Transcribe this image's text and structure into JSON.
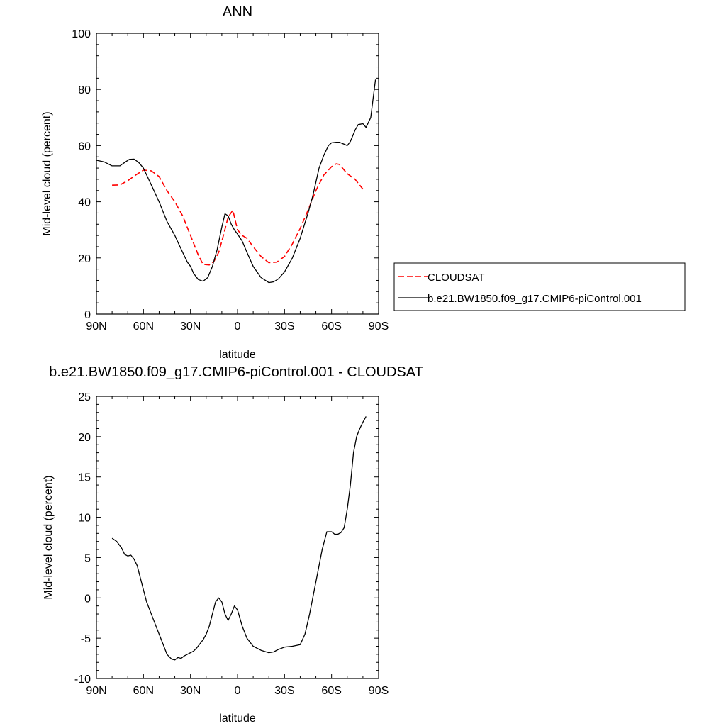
{
  "chart_data": [
    {
      "type": "line",
      "title": "ANN",
      "xlabel": "latitude",
      "ylabel": "Mid-level cloud (percent)",
      "xlim": [
        -90,
        90
      ],
      "ylim": [
        0,
        100
      ],
      "xticks": [
        -90,
        -60,
        -30,
        0,
        30,
        60,
        90
      ],
      "xtick_labels": [
        "90N",
        "60N",
        "30N",
        "0",
        "30S",
        "60S",
        "90S"
      ],
      "yticks": [
        0,
        20,
        40,
        60,
        80,
        100
      ],
      "ytick_labels": [
        "0",
        "20",
        "40",
        "60",
        "80",
        "100"
      ],
      "legend_position": "right",
      "series": [
        {
          "name": "CLOUDSAT",
          "color": "#ff0000",
          "dash": "dashed",
          "x": [
            -80,
            -75,
            -70,
            -65,
            -60,
            -55,
            -50,
            -45,
            -40,
            -35,
            -30,
            -25,
            -22,
            -18,
            -15,
            -12,
            -9,
            -6,
            -3,
            0,
            3,
            6,
            10,
            15,
            20,
            25,
            30,
            35,
            40,
            45,
            50,
            55,
            60,
            63,
            65,
            70,
            75,
            80
          ],
          "y": [
            45.9,
            46.0,
            47.5,
            49.5,
            51.3,
            51.0,
            49.0,
            44.0,
            40.0,
            35.0,
            28.0,
            21.0,
            17.7,
            17.5,
            18.8,
            22.0,
            28.0,
            34.5,
            37.0,
            30.0,
            28.0,
            27.0,
            24.0,
            20.5,
            18.3,
            18.5,
            20.5,
            25.0,
            30.5,
            37.0,
            44.0,
            49.5,
            52.5,
            53.5,
            53.3,
            50.0,
            48.0,
            44.5
          ]
        },
        {
          "name": "b.e21.BW1850.f09_g17.CMIP6-piControl.001",
          "color": "#000000",
          "dash": "solid",
          "x": [
            -90,
            -85,
            -80,
            -75,
            -72,
            -69,
            -66,
            -63,
            -60,
            -55,
            -50,
            -45,
            -40,
            -35,
            -32,
            -30,
            -28,
            -25,
            -22,
            -19,
            -16,
            -13,
            -10,
            -8,
            -6,
            -4,
            -2,
            0,
            3,
            6,
            10,
            15,
            20,
            23,
            26,
            30,
            35,
            40,
            45,
            48,
            50,
            52,
            55,
            58,
            60,
            63,
            65,
            68,
            70,
            72,
            75,
            77,
            80,
            82,
            85,
            88
          ],
          "y": [
            54.8,
            54.2,
            52.8,
            52.8,
            54.0,
            55.1,
            55.2,
            54.0,
            52.0,
            46.0,
            40.0,
            33.0,
            28.0,
            22.0,
            18.5,
            17.0,
            14.5,
            12.3,
            11.7,
            13.0,
            17.0,
            23.0,
            31.0,
            35.7,
            35.0,
            32.0,
            30.0,
            28.5,
            26.0,
            22.0,
            17.0,
            13.0,
            11.2,
            11.5,
            12.5,
            15.0,
            20.0,
            27.0,
            36.0,
            42.0,
            47.0,
            52.0,
            56.5,
            60.0,
            61.0,
            61.2,
            61.2,
            60.5,
            60.0,
            61.5,
            65.5,
            67.5,
            67.8,
            66.5,
            70.0,
            83.5
          ]
        }
      ]
    },
    {
      "type": "line",
      "title": "b.e21.BW1850.f09_g17.CMIP6-piControl.001 - CLOUDSAT",
      "xlabel": "latitude",
      "ylabel": "Mid-level cloud (percent)",
      "xlim": [
        -90,
        90
      ],
      "ylim": [
        -10,
        25
      ],
      "xticks": [
        -90,
        -60,
        -30,
        0,
        30,
        60,
        90
      ],
      "xtick_labels": [
        "90N",
        "60N",
        "30N",
        "0",
        "30S",
        "60S",
        "90S"
      ],
      "yticks": [
        -10,
        -5,
        0,
        5,
        10,
        15,
        20,
        25
      ],
      "ytick_labels": [
        "-10",
        "-5",
        "0",
        "5",
        "10",
        "15",
        "20",
        "25"
      ],
      "series": [
        {
          "color": "#000000",
          "dash": "solid",
          "x": [
            -80,
            -77,
            -74,
            -72,
            -70,
            -68,
            -66,
            -64,
            -62,
            -60,
            -58,
            -56,
            -54,
            -51,
            -48,
            -45,
            -42,
            -40,
            -38,
            -36,
            -34,
            -32,
            -30,
            -28,
            -26,
            -24,
            -22,
            -20,
            -18,
            -16,
            -14,
            -12,
            -10,
            -8,
            -6,
            -4,
            -2,
            0,
            3,
            6,
            10,
            15,
            20,
            23,
            26,
            30,
            35,
            40,
            43,
            46,
            50,
            54,
            57,
            60,
            62,
            64,
            66,
            68,
            70,
            72,
            74,
            76,
            78,
            80,
            82
          ],
          "y": [
            7.4,
            7.0,
            6.2,
            5.4,
            5.2,
            5.3,
            4.8,
            4.0,
            2.5,
            1.0,
            -0.5,
            -1.5,
            -2.5,
            -4.0,
            -5.5,
            -7.0,
            -7.6,
            -7.7,
            -7.4,
            -7.5,
            -7.2,
            -7.0,
            -6.8,
            -6.6,
            -6.2,
            -5.7,
            -5.2,
            -4.5,
            -3.5,
            -2.0,
            -0.5,
            0.0,
            -0.5,
            -2.0,
            -2.8,
            -2.0,
            -1.0,
            -1.5,
            -3.5,
            -5.0,
            -6.0,
            -6.5,
            -6.8,
            -6.7,
            -6.4,
            -6.1,
            -6.0,
            -5.8,
            -4.5,
            -2.0,
            2.0,
            6.0,
            8.2,
            8.2,
            7.9,
            7.9,
            8.1,
            8.7,
            11.0,
            14.0,
            18.0,
            20.0,
            21.0,
            21.8,
            22.5
          ]
        }
      ]
    }
  ]
}
